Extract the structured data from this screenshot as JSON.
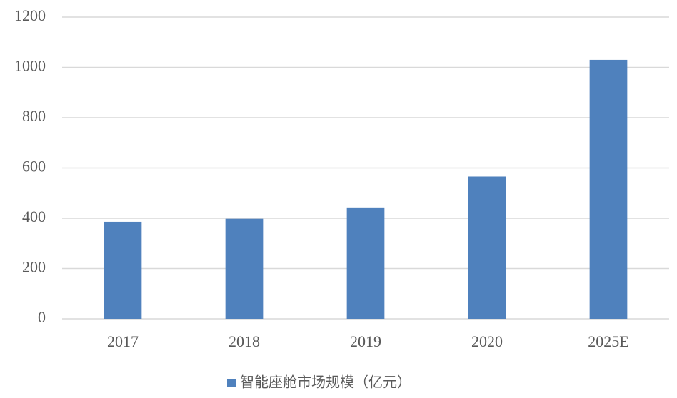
{
  "chart_data": {
    "type": "bar",
    "categories": [
      "2017",
      "2018",
      "2019",
      "2020",
      "2025E"
    ],
    "series": [
      {
        "name": "智能座舱市场规模（亿元）",
        "color": "#4f81bd",
        "values": [
          386,
          398,
          443,
          566,
          1030
        ]
      }
    ],
    "ylim": [
      0,
      1200
    ],
    "yticks": [
      0,
      200,
      400,
      600,
      800,
      1000,
      1200
    ],
    "grid": true,
    "legend": "bottom"
  }
}
